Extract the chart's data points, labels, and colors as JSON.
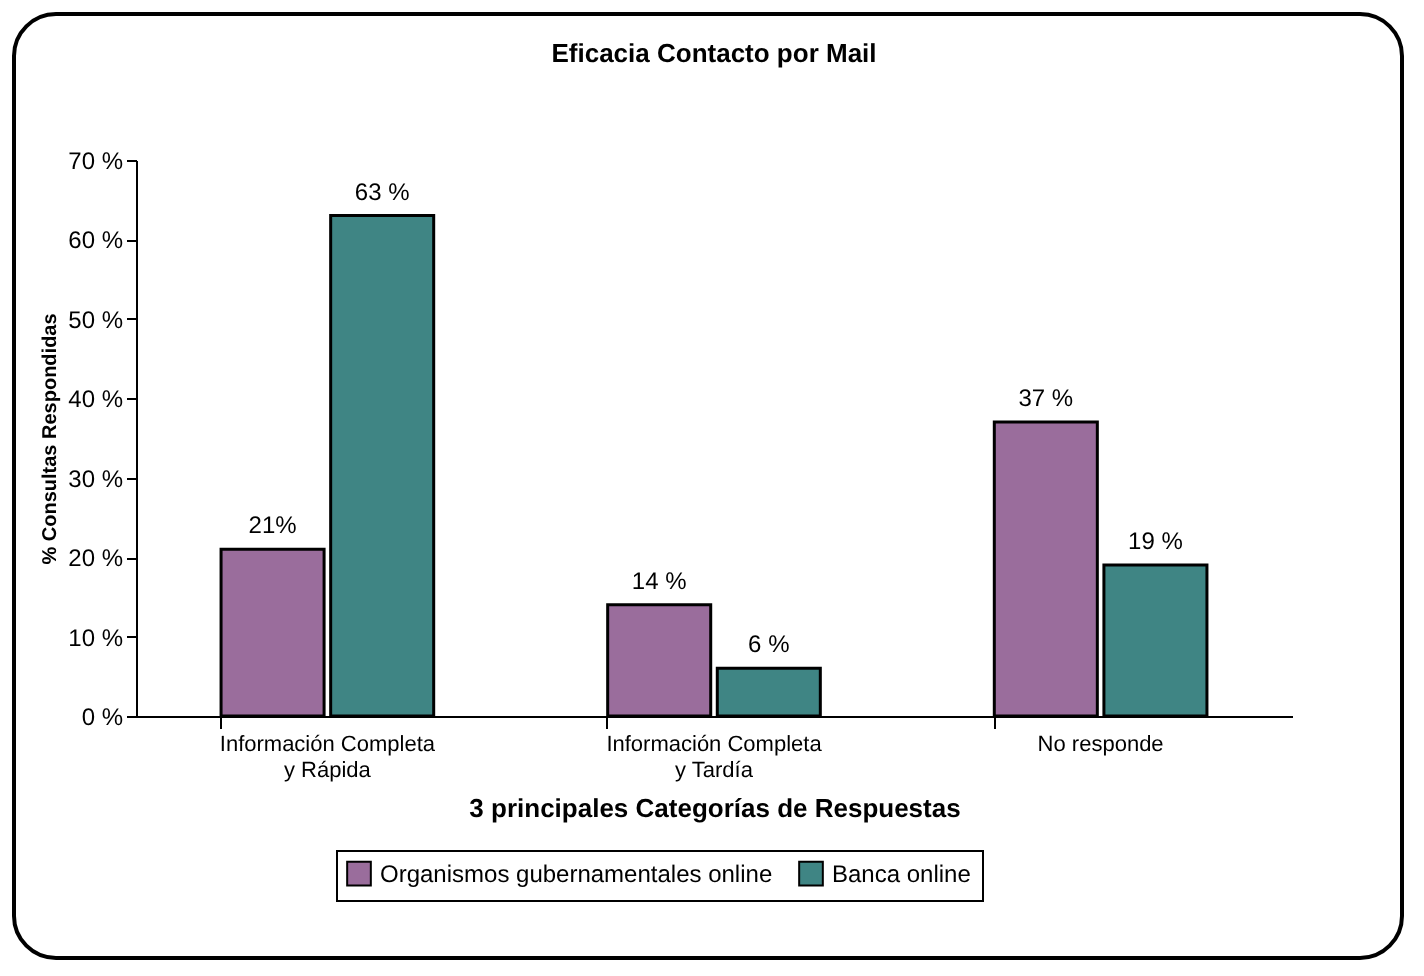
{
  "chart_data": {
    "type": "bar",
    "title": "Eficacia Contacto por Mail",
    "xlabel": "3 principales Categorías de Respuestas",
    "ylabel": "% Consultas Respondidas",
    "categories": [
      "Información Completa\ny Rápida",
      "Información Completa\ny Tardía",
      "No responde"
    ],
    "series": [
      {
        "name": "Organismos gubernamentales online",
        "color": "#9a6d9c",
        "values": [
          21,
          14,
          37
        ],
        "value_labels": [
          "21%",
          "14 %",
          "37 %"
        ]
      },
      {
        "name": "Banca online",
        "color": "#3f8584",
        "values": [
          63,
          6,
          19
        ],
        "value_labels": [
          "63 %",
          "6 %",
          "19 %"
        ]
      }
    ],
    "ylim": [
      0,
      70
    ],
    "yticks": [
      {
        "value": 0,
        "label": "0 %"
      },
      {
        "value": 10,
        "label": "10 %"
      },
      {
        "value": 20,
        "label": "20 %"
      },
      {
        "value": 30,
        "label": "30 %"
      },
      {
        "value": 40,
        "label": "40 %"
      },
      {
        "value": 50,
        "label": "50 %"
      },
      {
        "value": 60,
        "label": "60 %"
      },
      {
        "value": 70,
        "label": "70 %"
      }
    ],
    "grid": false,
    "legend": "bottom",
    "data_labels": true
  }
}
